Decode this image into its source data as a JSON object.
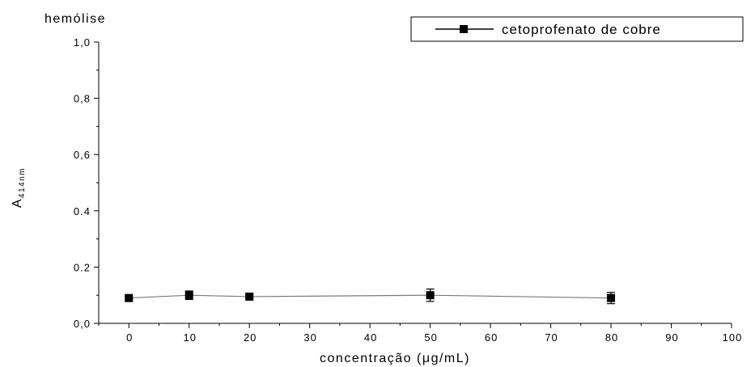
{
  "chart_data": {
    "type": "line",
    "title": "hemólise",
    "xlabel": "concentração (μg/mL)",
    "ylabel": {
      "main": "A",
      "sub": "414nm"
    },
    "xlim": [
      -5,
      100
    ],
    "ylim": [
      0.0,
      1.0
    ],
    "x_ticks": [
      "0",
      "10",
      "20",
      "30",
      "40",
      "50",
      "60",
      "70",
      "80",
      "90",
      "100"
    ],
    "y_ticks": [
      "0,0",
      "0.2",
      "0.4",
      "0,6",
      "0,8",
      "1,0"
    ],
    "grid": false,
    "legend_position": "top-right",
    "series": [
      {
        "name": "cetoprofenato de cobre",
        "marker": "square",
        "color": "#000000",
        "line_color": "#7a7a7a",
        "x": [
          0,
          10,
          20,
          50,
          80
        ],
        "y": [
          0.09,
          0.1,
          0.095,
          0.1,
          0.09
        ],
        "error": [
          0.005,
          0.015,
          0.005,
          0.022,
          0.02
        ]
      }
    ]
  }
}
